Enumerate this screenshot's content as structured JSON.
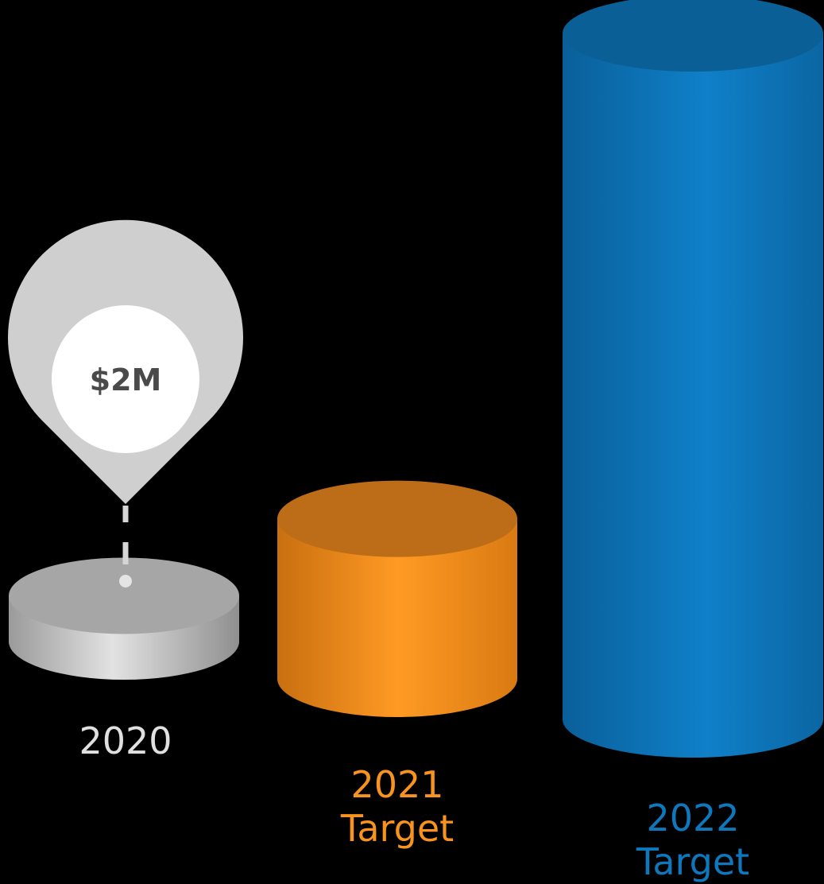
{
  "chart_data": {
    "type": "bar",
    "style": "3d-cylinder",
    "categories": [
      {
        "line1": "2020",
        "line2": "",
        "color": "#e0e0e0"
      },
      {
        "line1": "2021",
        "line2": "Target",
        "color": "#f7931e"
      },
      {
        "line1": "2022",
        "line2": "Target",
        "color": "#0e78bd"
      }
    ],
    "values": [
      2,
      7,
      30
    ],
    "unit": "$M",
    "annotation": {
      "category_index": 0,
      "label": "$2M"
    },
    "grid": false,
    "legend": "none"
  }
}
